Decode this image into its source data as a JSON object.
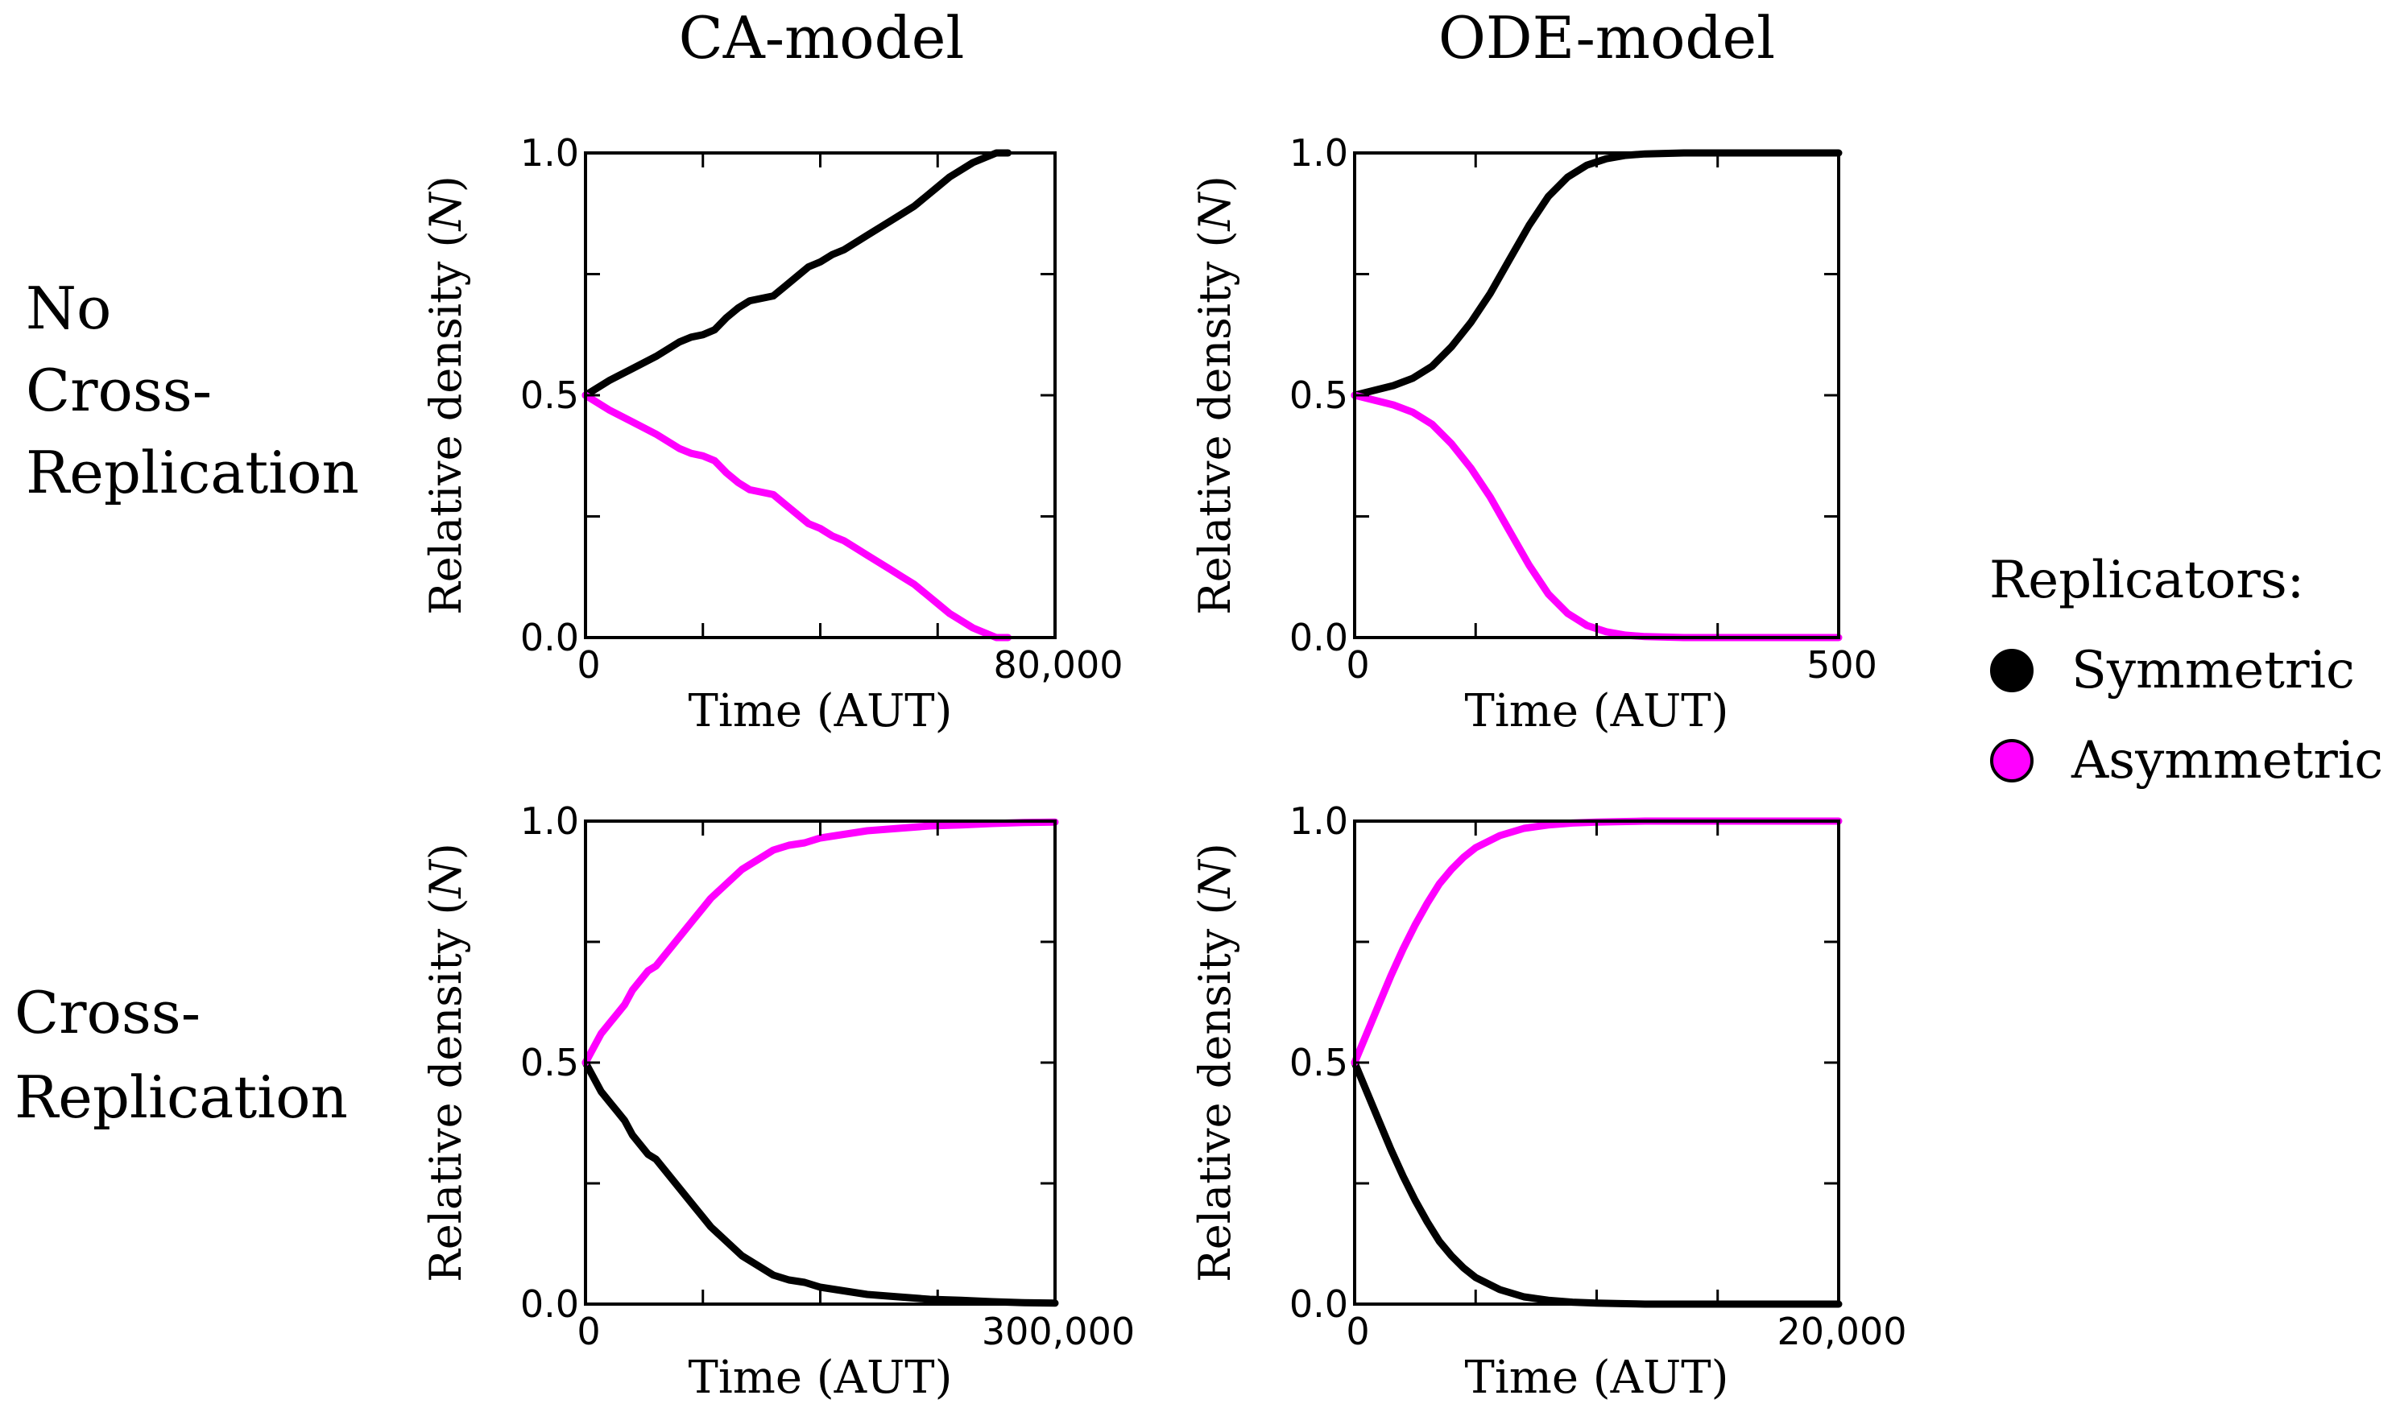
{
  "column_headers": [
    "CA-model",
    "ODE-model"
  ],
  "row_headers": [
    [
      "No",
      "Cross-",
      "Replication"
    ],
    [
      "Cross-",
      "Replication"
    ]
  ],
  "legend": {
    "title": "Replicators:",
    "items": [
      {
        "label": "Symmetric",
        "color": "#000000"
      },
      {
        "label": "Asymmetric",
        "color": "#ff00ff"
      }
    ]
  },
  "chart_data": [
    {
      "type": "line",
      "model": "CA-model",
      "condition": "No Cross-Replication",
      "xlabel": "Time (AUT)",
      "ylabel_text": "Relative density (",
      "ylabel_symbol": "N",
      "ylabel_close": ")",
      "xlim": [
        0,
        80000
      ],
      "ylim": [
        0,
        1.0
      ],
      "x_tick_labels": [
        "0",
        "80,000"
      ],
      "y_tick_labels": [
        "0.0",
        "0.5",
        "1.0"
      ],
      "series": [
        {
          "name": "Symmetric",
          "color": "#000000",
          "x": [
            0,
            4000,
            8000,
            12000,
            16000,
            18000,
            20000,
            22000,
            24000,
            26000,
            28000,
            30000,
            32000,
            34000,
            36000,
            38000,
            40000,
            42000,
            44000,
            46000,
            48000,
            50000,
            52000,
            54000,
            56000,
            58000,
            60000,
            62000,
            64000,
            66000,
            68000,
            70000,
            72000
          ],
          "y": [
            0.5,
            0.53,
            0.555,
            0.58,
            0.61,
            0.62,
            0.625,
            0.635,
            0.66,
            0.68,
            0.695,
            0.7,
            0.705,
            0.725,
            0.745,
            0.765,
            0.775,
            0.79,
            0.8,
            0.815,
            0.83,
            0.845,
            0.86,
            0.875,
            0.89,
            0.91,
            0.93,
            0.95,
            0.965,
            0.98,
            0.99,
            1.0,
            1.0
          ]
        },
        {
          "name": "Asymmetric",
          "color": "#ff00ff",
          "x": [
            0,
            4000,
            8000,
            12000,
            16000,
            18000,
            20000,
            22000,
            24000,
            26000,
            28000,
            30000,
            32000,
            34000,
            36000,
            38000,
            40000,
            42000,
            44000,
            46000,
            48000,
            50000,
            52000,
            54000,
            56000,
            58000,
            60000,
            62000,
            64000,
            66000,
            68000,
            70000,
            72000
          ],
          "y": [
            0.5,
            0.47,
            0.445,
            0.42,
            0.39,
            0.38,
            0.375,
            0.365,
            0.34,
            0.32,
            0.305,
            0.3,
            0.295,
            0.275,
            0.255,
            0.235,
            0.225,
            0.21,
            0.2,
            0.185,
            0.17,
            0.155,
            0.14,
            0.125,
            0.11,
            0.09,
            0.07,
            0.05,
            0.035,
            0.02,
            0.01,
            0.0,
            0.0
          ]
        }
      ]
    },
    {
      "type": "line",
      "model": "ODE-model",
      "condition": "No Cross-Replication",
      "xlabel": "Time (AUT)",
      "ylabel_text": "Relative density (",
      "ylabel_symbol": "N",
      "ylabel_close": ")",
      "xlim": [
        0,
        500
      ],
      "ylim": [
        0,
        1.0
      ],
      "x_tick_labels": [
        "0",
        "500"
      ],
      "y_tick_labels": [
        "0.0",
        "0.5",
        "1.0"
      ],
      "series": [
        {
          "name": "Symmetric",
          "color": "#000000",
          "x": [
            0,
            20,
            40,
            60,
            80,
            100,
            120,
            140,
            160,
            180,
            200,
            220,
            240,
            260,
            280,
            300,
            320,
            340,
            360,
            380,
            400,
            450,
            500
          ],
          "y": [
            0.5,
            0.51,
            0.52,
            0.535,
            0.56,
            0.6,
            0.65,
            0.71,
            0.78,
            0.85,
            0.91,
            0.95,
            0.975,
            0.988,
            0.995,
            0.998,
            0.999,
            1.0,
            1.0,
            1.0,
            1.0,
            1.0,
            1.0
          ]
        },
        {
          "name": "Asymmetric",
          "color": "#ff00ff",
          "x": [
            0,
            20,
            40,
            60,
            80,
            100,
            120,
            140,
            160,
            180,
            200,
            220,
            240,
            260,
            280,
            300,
            320,
            340,
            360,
            380,
            400,
            450,
            500
          ],
          "y": [
            0.5,
            0.49,
            0.48,
            0.465,
            0.44,
            0.4,
            0.35,
            0.29,
            0.22,
            0.15,
            0.09,
            0.05,
            0.025,
            0.012,
            0.005,
            0.002,
            0.001,
            0.0,
            0.0,
            0.0,
            0.0,
            0.0,
            0.0
          ]
        }
      ]
    },
    {
      "type": "line",
      "model": "CA-model",
      "condition": "Cross-Replication",
      "xlabel": "Time (AUT)",
      "ylabel_text": "Relative density (",
      "ylabel_symbol": "N",
      "ylabel_close": ")",
      "xlim": [
        0,
        300000
      ],
      "ylim": [
        0,
        1.0
      ],
      "x_tick_labels": [
        "0",
        "300,000"
      ],
      "y_tick_labels": [
        "0.0",
        "0.5",
        "1.0"
      ],
      "series": [
        {
          "name": "Symmetric",
          "color": "#000000",
          "x": [
            0,
            5000,
            10000,
            15000,
            20000,
            25000,
            30000,
            35000,
            40000,
            45000,
            50000,
            55000,
            60000,
            65000,
            70000,
            75000,
            80000,
            90000,
            100000,
            110000,
            120000,
            130000,
            140000,
            150000,
            160000,
            180000,
            200000,
            220000,
            240000,
            260000,
            280000,
            300000
          ],
          "y": [
            0.5,
            0.47,
            0.44,
            0.42,
            0.4,
            0.38,
            0.35,
            0.33,
            0.31,
            0.3,
            0.28,
            0.26,
            0.24,
            0.22,
            0.2,
            0.18,
            0.16,
            0.13,
            0.1,
            0.08,
            0.06,
            0.05,
            0.045,
            0.035,
            0.03,
            0.02,
            0.015,
            0.01,
            0.008,
            0.005,
            0.003,
            0.002
          ]
        },
        {
          "name": "Asymmetric",
          "color": "#ff00ff",
          "x": [
            0,
            5000,
            10000,
            15000,
            20000,
            25000,
            30000,
            35000,
            40000,
            45000,
            50000,
            55000,
            60000,
            65000,
            70000,
            75000,
            80000,
            90000,
            100000,
            110000,
            120000,
            130000,
            140000,
            150000,
            160000,
            180000,
            200000,
            220000,
            240000,
            260000,
            280000,
            300000
          ],
          "y": [
            0.5,
            0.53,
            0.56,
            0.58,
            0.6,
            0.62,
            0.65,
            0.67,
            0.69,
            0.7,
            0.72,
            0.74,
            0.76,
            0.78,
            0.8,
            0.82,
            0.84,
            0.87,
            0.9,
            0.92,
            0.94,
            0.95,
            0.955,
            0.965,
            0.97,
            0.98,
            0.985,
            0.99,
            0.992,
            0.995,
            0.997,
            0.998
          ]
        }
      ]
    },
    {
      "type": "line",
      "model": "ODE-model",
      "condition": "Cross-Replication",
      "xlabel": "Time (AUT)",
      "ylabel_text": "Relative density (",
      "ylabel_symbol": "N",
      "ylabel_close": ")",
      "xlim": [
        0,
        20000
      ],
      "ylim": [
        0,
        1.0
      ],
      "x_tick_labels": [
        "0",
        "20,000"
      ],
      "y_tick_labels": [
        "0.0",
        "0.5",
        "1.0"
      ],
      "series": [
        {
          "name": "Symmetric",
          "color": "#000000",
          "x": [
            0,
            500,
            1000,
            1500,
            2000,
            2500,
            3000,
            3500,
            4000,
            4500,
            5000,
            6000,
            7000,
            8000,
            9000,
            10000,
            11000,
            12000,
            14000,
            16000,
            18000,
            20000
          ],
          "y": [
            0.5,
            0.44,
            0.38,
            0.32,
            0.265,
            0.215,
            0.17,
            0.13,
            0.1,
            0.075,
            0.055,
            0.03,
            0.015,
            0.008,
            0.004,
            0.002,
            0.001,
            0.0,
            0.0,
            0.0,
            0.0,
            0.0
          ]
        },
        {
          "name": "Asymmetric",
          "color": "#ff00ff",
          "x": [
            0,
            500,
            1000,
            1500,
            2000,
            2500,
            3000,
            3500,
            4000,
            4500,
            5000,
            6000,
            7000,
            8000,
            9000,
            10000,
            11000,
            12000,
            14000,
            16000,
            18000,
            20000
          ],
          "y": [
            0.5,
            0.56,
            0.62,
            0.68,
            0.735,
            0.785,
            0.83,
            0.87,
            0.9,
            0.925,
            0.945,
            0.97,
            0.985,
            0.992,
            0.996,
            0.998,
            0.999,
            1.0,
            1.0,
            1.0,
            1.0,
            1.0
          ]
        }
      ]
    }
  ]
}
